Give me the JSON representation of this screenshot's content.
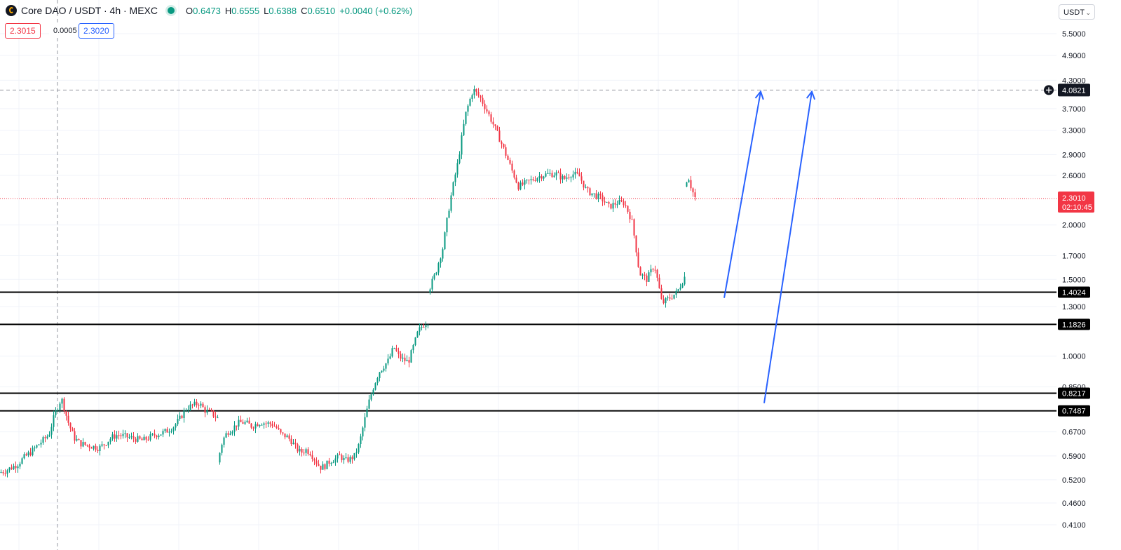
{
  "header": {
    "symbol_title": "Core DAO / USDT · 4h · MEXC",
    "ohlc": [
      {
        "k": "O",
        "v": "0.6473"
      },
      {
        "k": "H",
        "v": "0.6555"
      },
      {
        "k": "L",
        "v": "0.6388"
      },
      {
        "k": "C",
        "v": "0.6510"
      }
    ],
    "change": "+0.0040 (+0.62%)",
    "sell_price": "2.3015",
    "spread": "0.0005",
    "buy_price": "2.3020",
    "currency": "USDT"
  },
  "colors": {
    "up": "#089981",
    "down": "#f23645",
    "drawing": "#2962ff",
    "level": "#000000"
  },
  "chart_data": {
    "type": "candlestick",
    "scale": "log",
    "y_ticks": [
      "5.5000",
      "4.9000",
      "4.3000",
      "3.7000",
      "3.3000",
      "2.9000",
      "2.6000",
      "2.0000",
      "1.7000",
      "1.5000",
      "1.3000",
      "1.0000",
      "0.8500",
      "0.6700",
      "0.5900",
      "0.5200",
      "0.4600",
      "0.4100"
    ],
    "y_range": [
      0.39,
      6.0
    ],
    "last_price": {
      "value": 2.301,
      "label": "2.3010",
      "countdown": "02:10:45"
    },
    "crosshair": {
      "value": 4.082,
      "label": "4.0821"
    },
    "horizontal_levels": [
      {
        "value": 1.4024,
        "label": "1.4024"
      },
      {
        "value": 1.1826,
        "label": "1.1826"
      },
      {
        "value": 0.8217,
        "label": "0.8217"
      },
      {
        "value": 0.7487,
        "label": "0.7487"
      }
    ],
    "arrows": [
      {
        "from": 1.36,
        "to": 4.05
      },
      {
        "from": 0.78,
        "to": 4.05
      }
    ],
    "price_path": [
      [
        0.54,
        0.545,
        0.555,
        0.565,
        0.585,
        0.6,
        0.62,
        0.64,
        0.66,
        0.74,
        0.8,
        0.71,
        0.65,
        0.63,
        0.625,
        0.62,
        0.615,
        0.63,
        0.65,
        0.66,
        0.655,
        0.65,
        0.645,
        0.64,
        0.65,
        0.66,
        0.665,
        0.675,
        0.69,
        0.72,
        0.76,
        0.77,
        0.78,
        0.75,
        0.74,
        0.72
      ],
      [
        0.57,
        0.64,
        0.67,
        0.68,
        0.7,
        0.705,
        0.7,
        0.69,
        0.7,
        0.705,
        0.7,
        0.7,
        0.685,
        0.66,
        0.655,
        0.64,
        0.615,
        0.6,
        0.61,
        0.6,
        0.575,
        0.555,
        0.56,
        0.575,
        0.58,
        0.59,
        0.575,
        0.58,
        0.59,
        0.63,
        0.71,
        0.79,
        0.86,
        0.92,
        0.95,
        0.98,
        1.05,
        1.0,
        0.98,
        0.97,
        1.05,
        1.14,
        1.18,
        1.2
      ],
      [
        1.4,
        1.55,
        1.78,
        2.3,
        2.8,
        3.6,
        4.1,
        3.9,
        3.6,
        3.3,
        3.0,
        2.7,
        2.45,
        2.5,
        2.55,
        2.6,
        2.62,
        2.62,
        2.55,
        2.62,
        2.6,
        2.4,
        2.35,
        2.3,
        2.2,
        2.25,
        2.25,
        2.05,
        1.55,
        1.5,
        1.62,
        1.32,
        1.36,
        1.4,
        1.52
      ],
      [
        2.45,
        2.6,
        2.42,
        2.31
      ]
    ]
  }
}
